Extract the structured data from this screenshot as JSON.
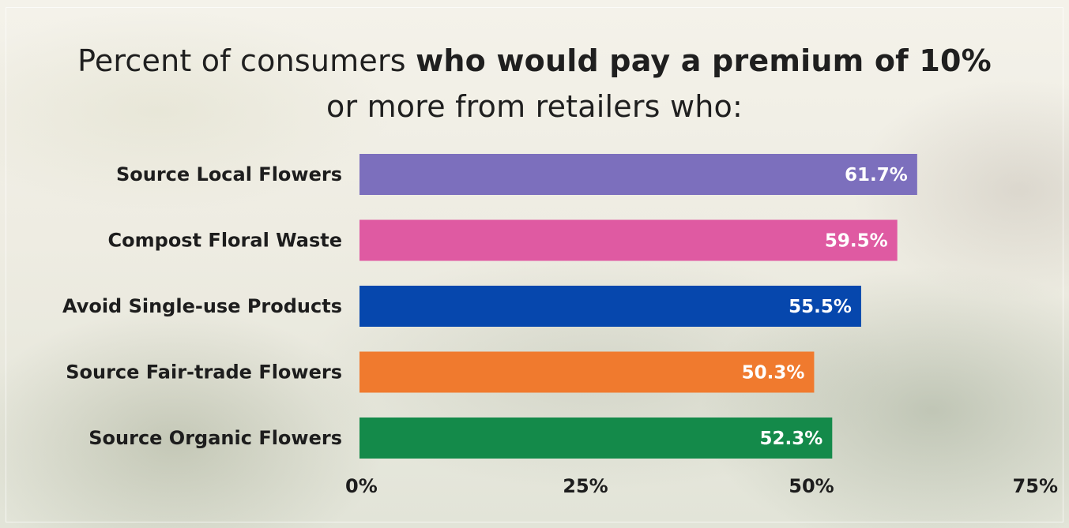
{
  "title": {
    "line1_plain": "Percent of consumers ",
    "line1_bold": "who would pay a premium of 10%",
    "line2": "or more from retailers who:"
  },
  "chart_data": {
    "type": "bar",
    "orientation": "horizontal",
    "categories": [
      "Source Local Flowers",
      "Compost Floral Waste",
      "Avoid Single-use Products",
      "Source Fair-trade Flowers",
      "Source Organic Flowers"
    ],
    "values": [
      61.7,
      59.5,
      55.5,
      50.3,
      52.3
    ],
    "value_labels": [
      "61.7%",
      "59.5%",
      "55.5%",
      "50.3%",
      "52.3%"
    ],
    "colors": [
      "#7c6fbd",
      "#df5aa2",
      "#0647ad",
      "#f07a2e",
      "#148a4a"
    ],
    "xlim": [
      0,
      75
    ],
    "ticks": [
      0,
      25,
      50,
      75
    ],
    "tick_labels": [
      "0%",
      "25%",
      "50%",
      "75%"
    ],
    "grid": false,
    "legend": "none"
  }
}
